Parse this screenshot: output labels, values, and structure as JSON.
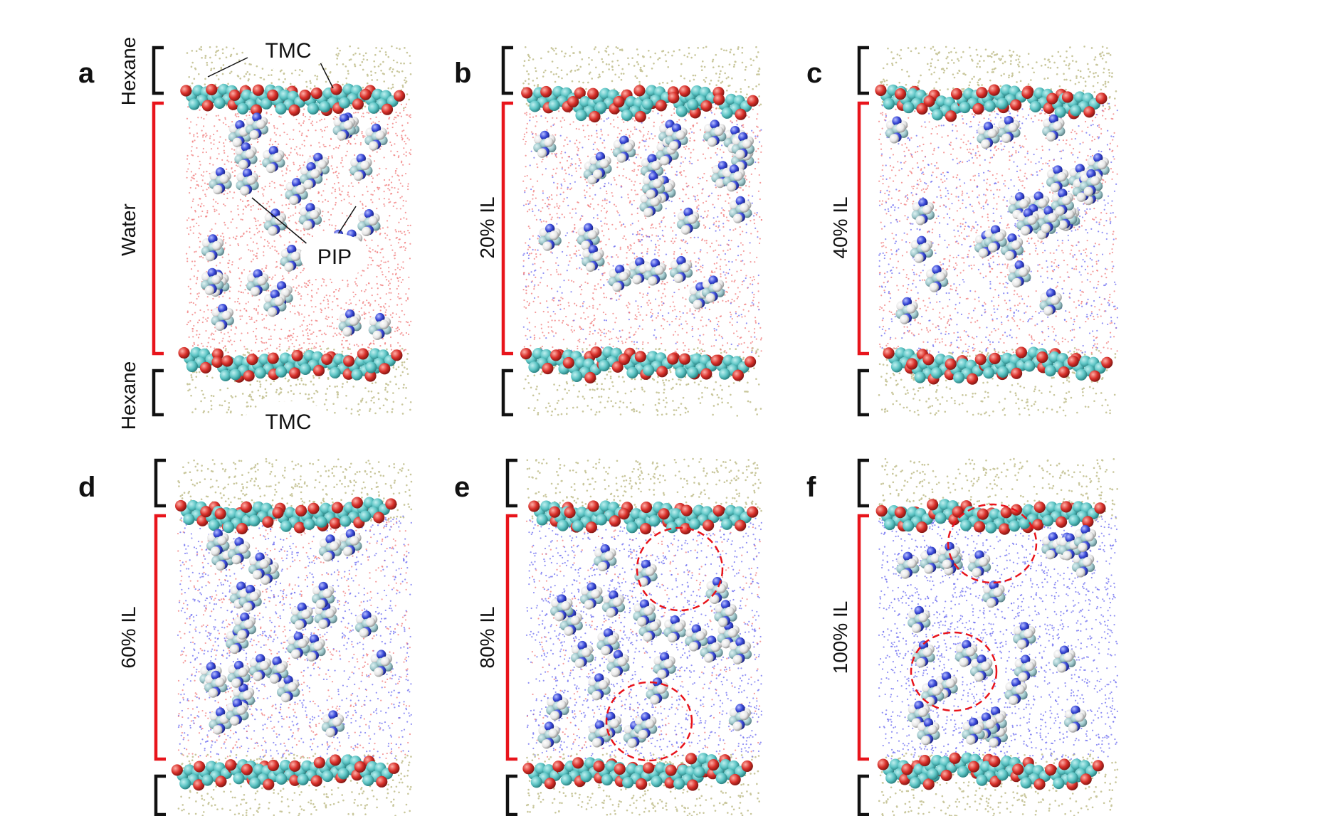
{
  "panels": [
    {
      "letter": "a",
      "labels": {
        "top": "Hexane",
        "middle": "Water",
        "bottom": "Hexane"
      },
      "annotations": {
        "tmc_top": "TMC",
        "pip": "PIP",
        "tmc_bottom": "TMC"
      }
    },
    {
      "letter": "b",
      "labels": {
        "middle": "20% IL"
      }
    },
    {
      "letter": "c",
      "labels": {
        "middle": "40% IL"
      }
    },
    {
      "letter": "d",
      "labels": {
        "middle": "60% IL"
      }
    },
    {
      "letter": "e",
      "labels": {
        "middle": "80% IL"
      }
    },
    {
      "letter": "f",
      "labels": {
        "middle": "100% IL"
      }
    }
  ],
  "colors": {
    "hexane": "#c9c79c",
    "water": "#f07a7a",
    "ionic_liquid": "#6b6bf0",
    "hexane_bracket": "#111111",
    "water_bracket": "#e8141b",
    "cluster_circle": "#e8141b",
    "carbon": "#5cc4c4",
    "oxygen": "#d8302a",
    "nitrogen": "#3848d8",
    "hydrogen": "#eeeeee"
  }
}
